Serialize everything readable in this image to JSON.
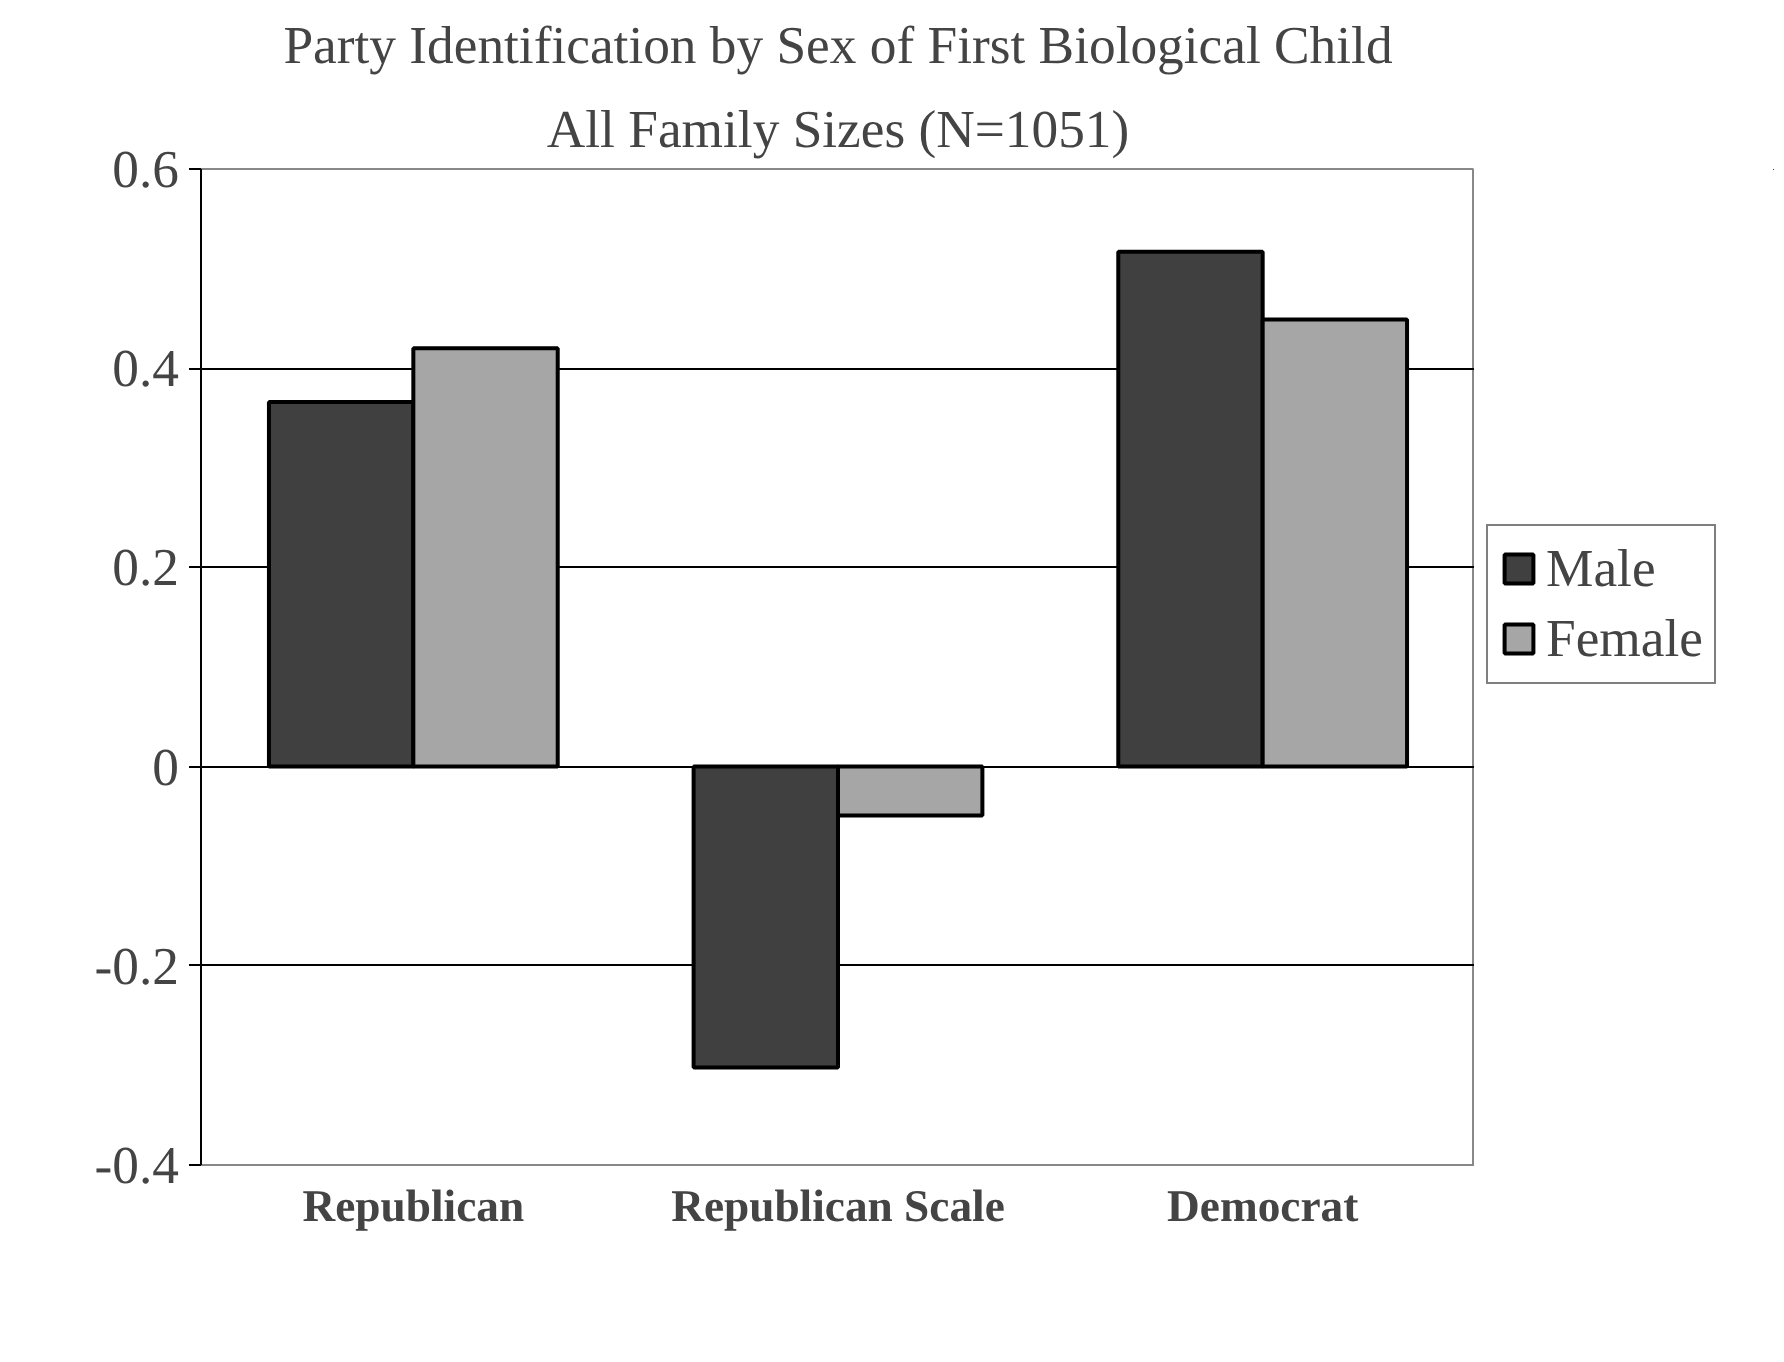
{
  "chart_data": {
    "type": "bar",
    "title": "Party Identification by Sex of First Biological Child",
    "subtitle": "All Family Sizes (N=1051)",
    "categories": [
      "Republican",
      "Republican Scale",
      "Democrat"
    ],
    "series": [
      {
        "name": "Male",
        "color": "#404040",
        "values": [
          0.366,
          -0.302,
          0.517
        ]
      },
      {
        "name": "Female",
        "color": "#a6a6a6",
        "values": [
          0.42,
          -0.049,
          0.449
        ]
      }
    ],
    "ylim": [
      -0.4,
      0.6
    ],
    "yticks": [
      {
        "value": -0.4,
        "label": "-0.4"
      },
      {
        "value": -0.2,
        "label": "-0.2"
      },
      0,
      0.2,
      0.4,
      0.6
    ],
    "grid": "y",
    "legend": "right"
  }
}
